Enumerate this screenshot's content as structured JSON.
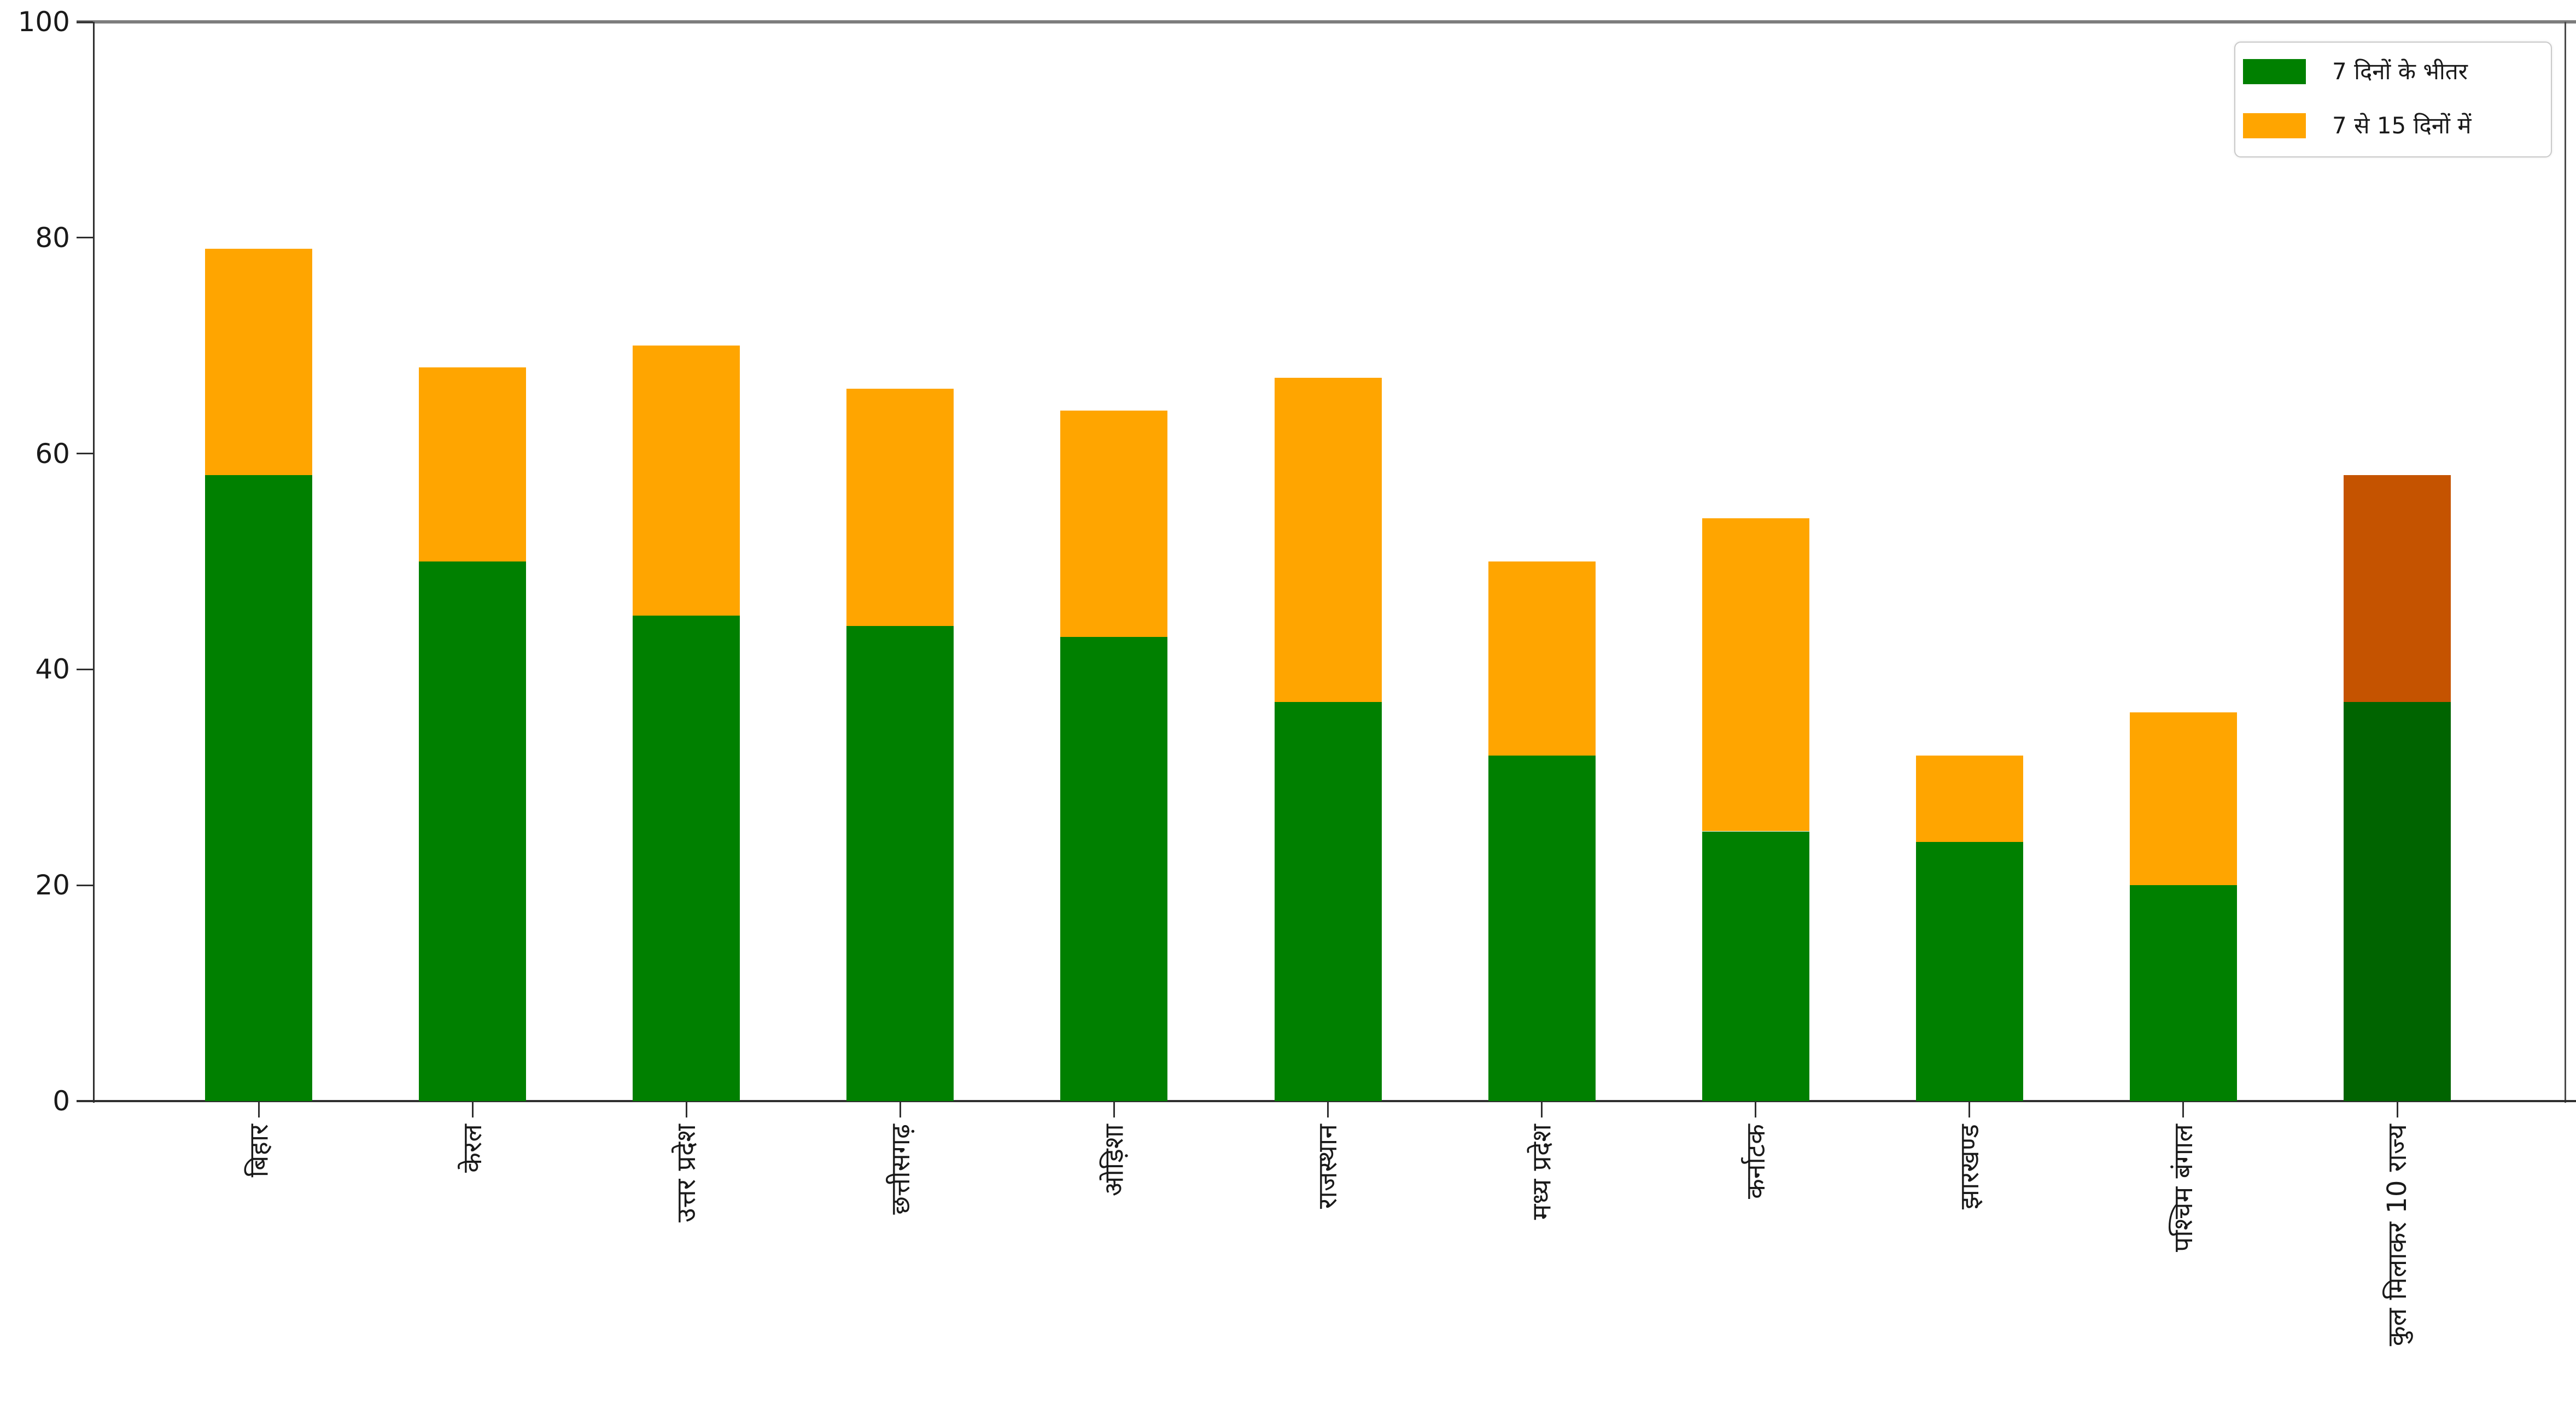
{
  "axes": {
    "spine_color": "#2f2f2f",
    "right_spine_color": "#4a4a4a",
    "top_border_color": "#7d7d7d",
    "tick_label_color": "#1a1a1a",
    "background": "#ffffff"
  },
  "chart_data": {
    "type": "bar",
    "subtype": "stacked-vertical",
    "title": "",
    "xlabel": "",
    "ylabel": "",
    "ylim": [
      0,
      100
    ],
    "yticks": [
      0,
      20,
      40,
      60,
      80,
      100
    ],
    "grid": false,
    "legend_position": "top-right",
    "categories": [
      "बिहार",
      "केरल",
      "उत्तर प्रदेश",
      "छत्तीसगढ़",
      "ओड़िशा",
      "राजस्थान",
      "मध्य प्रदेश",
      "कर्नाटक",
      "झारखण्ड",
      "पश्चिम बंगाल",
      "कुल मिलाकर 10 राज्य"
    ],
    "series": [
      {
        "name": "7 दिनों के भीतर",
        "color": "#008000",
        "highlight_color": "#006400",
        "values": [
          58,
          50,
          45,
          44,
          43,
          37,
          32,
          25,
          24,
          20,
          37
        ]
      },
      {
        "name": "7 से 15 दिनों में",
        "color": "#FFA500",
        "highlight_color": "#C55300",
        "values": [
          21,
          18,
          25,
          22,
          21,
          30,
          18,
          29,
          8,
          16,
          21
        ]
      }
    ],
    "totals": [
      79,
      68,
      70,
      66,
      64,
      67,
      50,
      54,
      32,
      36,
      58
    ],
    "highlight_index": 10
  }
}
